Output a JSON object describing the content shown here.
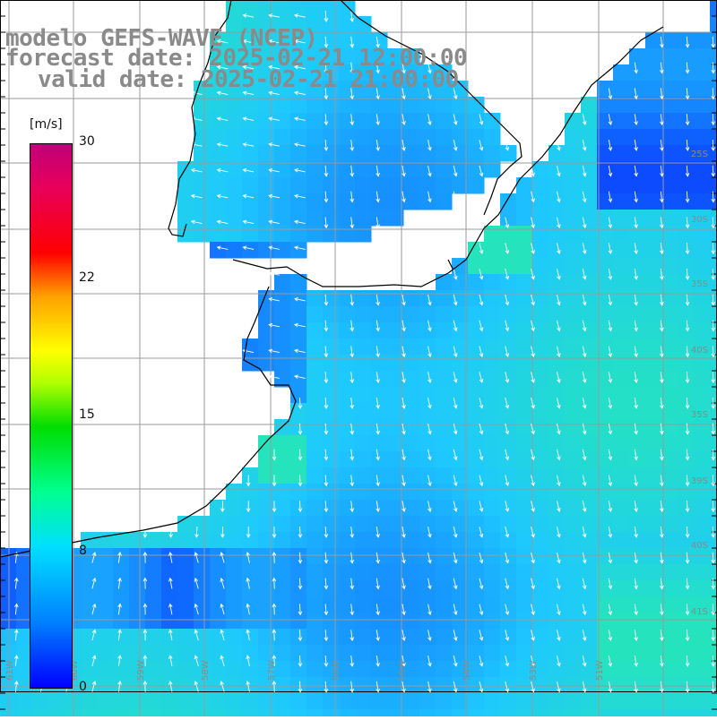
{
  "header": {
    "model": "modelo GEFS-WAVE (NCEP)",
    "forecast": "forecast date: 2025-02-21 12:00:00",
    "valid": "valid date: 2025-02-21 21:00:00"
  },
  "colorbar": {
    "unit": "[m/s]",
    "ticks": [
      "30",
      "22",
      "15",
      "8",
      "0"
    ],
    "min": 0,
    "max": 30
  },
  "map": {
    "lat_labels": [
      "25S",
      "30S",
      "35S",
      "40S",
      "35S",
      "39S",
      "40S",
      "41S"
    ],
    "lon_labels": [
      "61W",
      "60W",
      "59W",
      "58W",
      "57W",
      "56W",
      "55W",
      "54W",
      "53W",
      "51W"
    ]
  },
  "colors": {
    "ocean_low": "#0a3cff",
    "ocean_mid": "#1ec8ff",
    "ocean_high": "#28f0a0",
    "land": "#ffffff",
    "grid": "#9a9a9a",
    "coast": "#000000",
    "arrow": "#ffffff",
    "title": "#8a8a8a"
  }
}
